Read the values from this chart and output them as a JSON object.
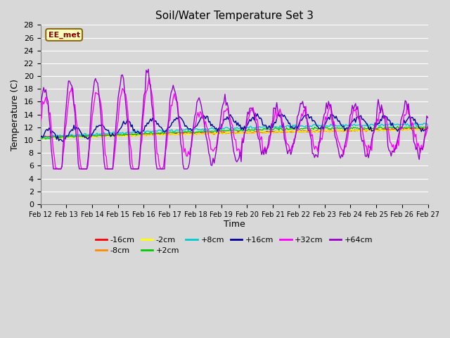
{
  "title": "Soil/Water Temperature Set 3",
  "xlabel": "Time",
  "ylabel": "Temperature (C)",
  "ylim": [
    0,
    28
  ],
  "yticks": [
    0,
    2,
    4,
    6,
    8,
    10,
    12,
    14,
    16,
    18,
    20,
    22,
    24,
    26,
    28
  ],
  "date_labels": [
    "Feb 12",
    "Feb 13",
    "Feb 14",
    "Feb 15",
    "Feb 16",
    "Feb 17",
    "Feb 18",
    "Feb 19",
    "Feb 20",
    "Feb 21",
    "Feb 22",
    "Feb 23",
    "Feb 24",
    "Feb 25",
    "Feb 26",
    "Feb 27"
  ],
  "watermark": "EE_met",
  "series_colors": {
    "-16cm": "#FF0000",
    "-8cm": "#FF8C00",
    "-2cm": "#FFFF00",
    "+2cm": "#00CC00",
    "+8cm": "#00CCCC",
    "+16cm": "#000099",
    "+32cm": "#FF00FF",
    "+64cm": "#9900CC"
  },
  "bg_color": "#D8D8D8",
  "grid_color": "#FFFFFF",
  "plot_bg": "#D8D8D8"
}
